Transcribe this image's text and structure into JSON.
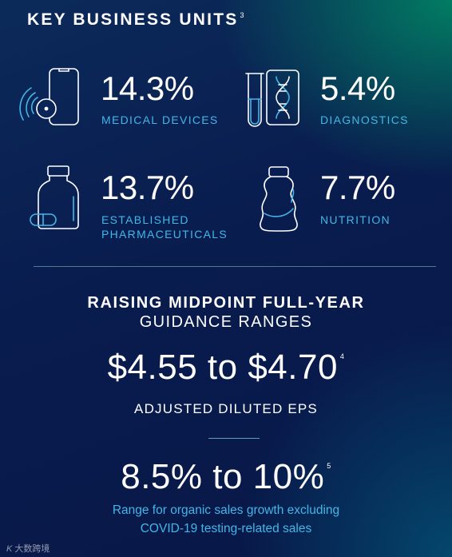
{
  "header": {
    "title": "KEY BUSINESS UNITS",
    "footnote": "3"
  },
  "units": [
    {
      "percent": "14.3%",
      "label": "MEDICAL DEVICES",
      "icon": "medical-device-icon"
    },
    {
      "percent": "5.4%",
      "label": "DIAGNOSTICS",
      "icon": "test-tube-dna-icon"
    },
    {
      "percent": "13.7%",
      "label_line1": "ESTABLISHED",
      "label_line2": "PHARMACEUTICALS",
      "icon": "pill-bottle-icon"
    },
    {
      "percent": "7.7%",
      "label": "NUTRITION",
      "icon": "nutrition-bottle-icon"
    }
  ],
  "guidance": {
    "heading_bold": "RAISING MIDPOINT FULL-YEAR",
    "heading_light": "GUIDANCE RANGES",
    "eps_range": "$4.55 to $4.70",
    "eps_footnote": "4",
    "eps_label": "ADJUSTED DILUTED EPS",
    "growth_range": "8.5% to 10%",
    "growth_footnote": "5",
    "growth_desc_line1": "Range for organic sales growth excluding",
    "growth_desc_line2": "COVID-19 testing-related sales"
  },
  "watermark": {
    "text": "大数跨境"
  },
  "colors": {
    "accent": "#43b6e8",
    "text": "#ffffff",
    "bg_dark": "#081747",
    "bg_green": "#008c64"
  }
}
